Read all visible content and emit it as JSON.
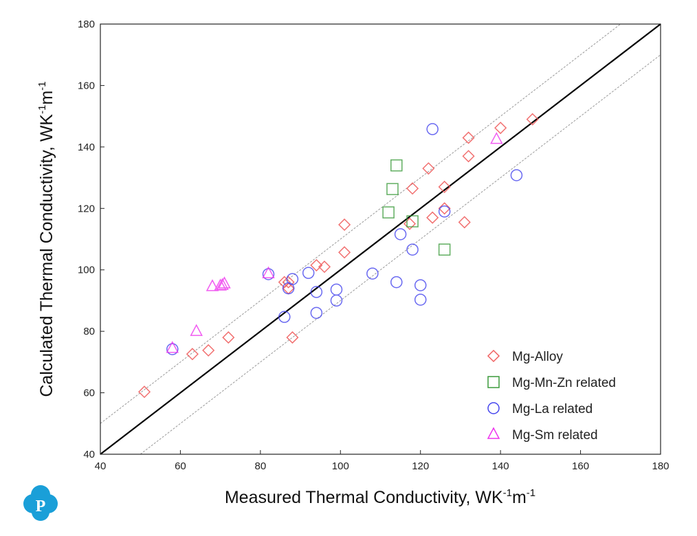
{
  "chart_data": {
    "type": "scatter",
    "xlabel": "Measured Thermal Conductivity, WK",
    "ylabel": "Calculated Thermal Conductivity, WK",
    "unit_sup1": "-1",
    "unit_m": "m",
    "unit_sup2": "-1",
    "xlim": [
      40,
      180
    ],
    "ylim": [
      40,
      180
    ],
    "xticks": [
      40,
      60,
      80,
      100,
      120,
      140,
      160,
      180
    ],
    "yticks": [
      40,
      60,
      80,
      100,
      120,
      140,
      160,
      180
    ],
    "lines": [
      {
        "name": "y=x",
        "offset": 0,
        "style": "solid"
      },
      {
        "name": "+10",
        "offset": 10,
        "style": "dashed"
      },
      {
        "name": "-10",
        "offset": -10,
        "style": "dashed"
      }
    ],
    "legend_position": "bottom-right",
    "series": [
      {
        "name": "Mg-Alloy",
        "marker": "diamond",
        "color": "#f06060",
        "points": [
          [
            51,
            60.3
          ],
          [
            63,
            72.6
          ],
          [
            67,
            73.8
          ],
          [
            72,
            78
          ],
          [
            86,
            96
          ],
          [
            87,
            94
          ],
          [
            87,
            96
          ],
          [
            94,
            101.5
          ],
          [
            96,
            101
          ],
          [
            101,
            105.7
          ],
          [
            101,
            114.7
          ],
          [
            88,
            78
          ],
          [
            117.3,
            115
          ],
          [
            118,
            126.5
          ],
          [
            122,
            133
          ],
          [
            123,
            117
          ],
          [
            126,
            127
          ],
          [
            126,
            120
          ],
          [
            131,
            115.5
          ],
          [
            132,
            137
          ],
          [
            132,
            143
          ],
          [
            140,
            146.2
          ],
          [
            148,
            149
          ]
        ]
      },
      {
        "name": "Mg-Mn-Zn related",
        "marker": "square",
        "color": "#3a9a3a",
        "points": [
          [
            114,
            134
          ],
          [
            113,
            126.3
          ],
          [
            112,
            118.7
          ],
          [
            118,
            115.8
          ],
          [
            126,
            106.6
          ]
        ]
      },
      {
        "name": "Mg-La related",
        "marker": "circle",
        "color": "#4444ee",
        "points": [
          [
            58,
            74.2
          ],
          [
            82,
            98.6
          ],
          [
            86,
            84.7
          ],
          [
            87,
            94
          ],
          [
            88,
            97
          ],
          [
            92,
            99
          ],
          [
            94,
            92.8
          ],
          [
            94,
            86
          ],
          [
            99,
            93.6
          ],
          [
            99,
            90
          ],
          [
            108,
            98.8
          ],
          [
            114,
            96
          ],
          [
            115,
            111.6
          ],
          [
            118,
            106.6
          ],
          [
            120,
            95
          ],
          [
            120,
            90.3
          ],
          [
            123,
            145.8
          ],
          [
            126,
            119
          ],
          [
            144,
            130.8
          ]
        ]
      },
      {
        "name": "Mg-Sm related",
        "marker": "triangle",
        "color": "#ee33ee",
        "points": [
          [
            58,
            74.5
          ],
          [
            64,
            80
          ],
          [
            68,
            94.6
          ],
          [
            70,
            94.8
          ],
          [
            70.5,
            95
          ],
          [
            71,
            95.5
          ],
          [
            82,
            98.8
          ],
          [
            139,
            142.5
          ]
        ]
      }
    ]
  },
  "logo": {
    "letter": "P"
  }
}
